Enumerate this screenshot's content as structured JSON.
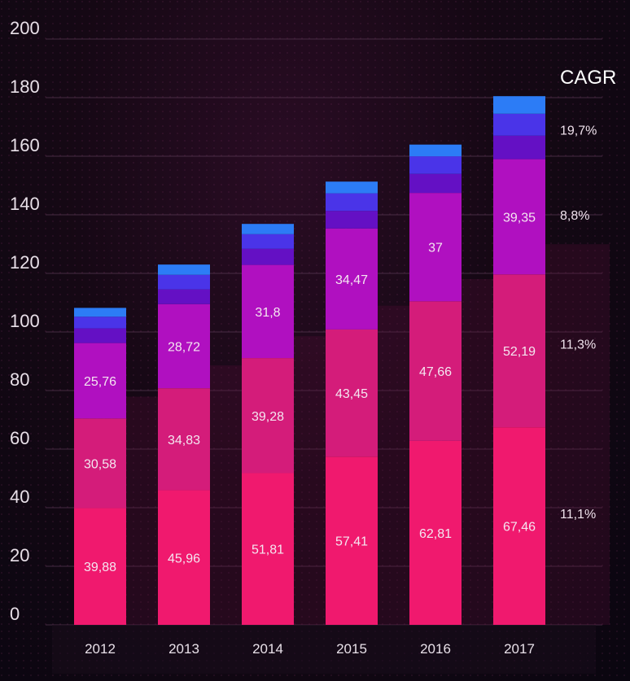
{
  "chart_data": {
    "type": "bar",
    "stacked": true,
    "categories": [
      "2012",
      "2013",
      "2014",
      "2015",
      "2016",
      "2017"
    ],
    "ylim": [
      0,
      200
    ],
    "yticks": [
      0,
      20,
      40,
      60,
      80,
      100,
      120,
      140,
      160,
      180,
      200
    ],
    "grid": true,
    "series": [
      {
        "color": "#f0196e",
        "values": [
          39.88,
          45.96,
          51.81,
          57.41,
          62.81,
          67.46
        ],
        "labels": [
          "39,88",
          "45,96",
          "51,81",
          "57,41",
          "62,81",
          "67,46"
        ]
      },
      {
        "color": "#d41c7a",
        "values": [
          30.58,
          34.83,
          39.28,
          43.45,
          47.66,
          52.19
        ],
        "labels": [
          "30,58",
          "34,83",
          "39,28",
          "43,45",
          "47,66",
          "52,19"
        ]
      },
      {
        "color": "#b010c0",
        "values": [
          25.76,
          28.72,
          31.8,
          34.47,
          37,
          39.35
        ],
        "labels": [
          "25,76",
          "28,72",
          "31,8",
          "34,47",
          "37",
          "39,35"
        ]
      },
      {
        "color": "#6410c4",
        "values": [
          5.0,
          5.0,
          5.5,
          6.0,
          6.5,
          8.0
        ],
        "labels": [
          "",
          "",
          "",
          "",
          "",
          ""
        ]
      },
      {
        "color": "#4a34e8",
        "values": [
          4.0,
          5.0,
          5.0,
          6.0,
          6.0,
          7.5
        ],
        "labels": [
          "",
          "",
          "",
          "",
          "",
          ""
        ]
      },
      {
        "color": "#2c7cf6",
        "values": [
          3.0,
          3.5,
          3.5,
          4.0,
          4.0,
          6.0
        ],
        "labels": [
          "",
          "",
          "",
          "",
          "",
          ""
        ]
      }
    ],
    "cagr": {
      "title": "CAGR",
      "items": [
        {
          "label": "19,7%",
          "y": 169
        },
        {
          "label": "8,8%",
          "y": 140
        },
        {
          "label": "11,3%",
          "y": 96
        },
        {
          "label": "11,1%",
          "y": 38
        }
      ]
    }
  }
}
